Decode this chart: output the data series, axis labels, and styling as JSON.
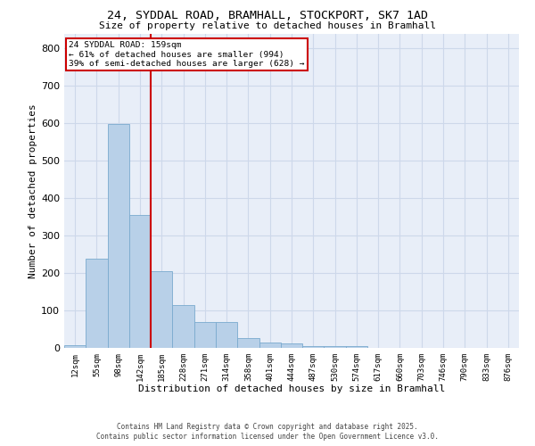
{
  "title_line1": "24, SYDDAL ROAD, BRAMHALL, STOCKPORT, SK7 1AD",
  "title_line2": "Size of property relative to detached houses in Bramhall",
  "xlabel": "Distribution of detached houses by size in Bramhall",
  "ylabel": "Number of detached properties",
  "bar_values": [
    7,
    238,
    597,
    355,
    205,
    115,
    70,
    70,
    27,
    15,
    12,
    5,
    4,
    5,
    0,
    0,
    0,
    0,
    0,
    0,
    0
  ],
  "bin_labels": [
    "12sqm",
    "55sqm",
    "98sqm",
    "142sqm",
    "185sqm",
    "228sqm",
    "271sqm",
    "314sqm",
    "358sqm",
    "401sqm",
    "444sqm",
    "487sqm",
    "530sqm",
    "574sqm",
    "617sqm",
    "660sqm",
    "703sqm",
    "746sqm",
    "790sqm",
    "833sqm",
    "876sqm"
  ],
  "bar_color": "#b8d0e8",
  "bar_edge_color": "#7aaace",
  "vline_x_index": 3.5,
  "vline_color": "#cc0000",
  "annotation_text": "24 SYDDAL ROAD: 159sqm\n← 61% of detached houses are smaller (994)\n39% of semi-detached houses are larger (628) →",
  "annotation_box_color": "#cc0000",
  "ylim": [
    0,
    840
  ],
  "yticks": [
    0,
    100,
    200,
    300,
    400,
    500,
    600,
    700,
    800
  ],
  "grid_color": "#cdd8ea",
  "background_color": "#e8eef8",
  "footer_line1": "Contains HM Land Registry data © Crown copyright and database right 2025.",
  "footer_line2": "Contains public sector information licensed under the Open Government Licence v3.0."
}
